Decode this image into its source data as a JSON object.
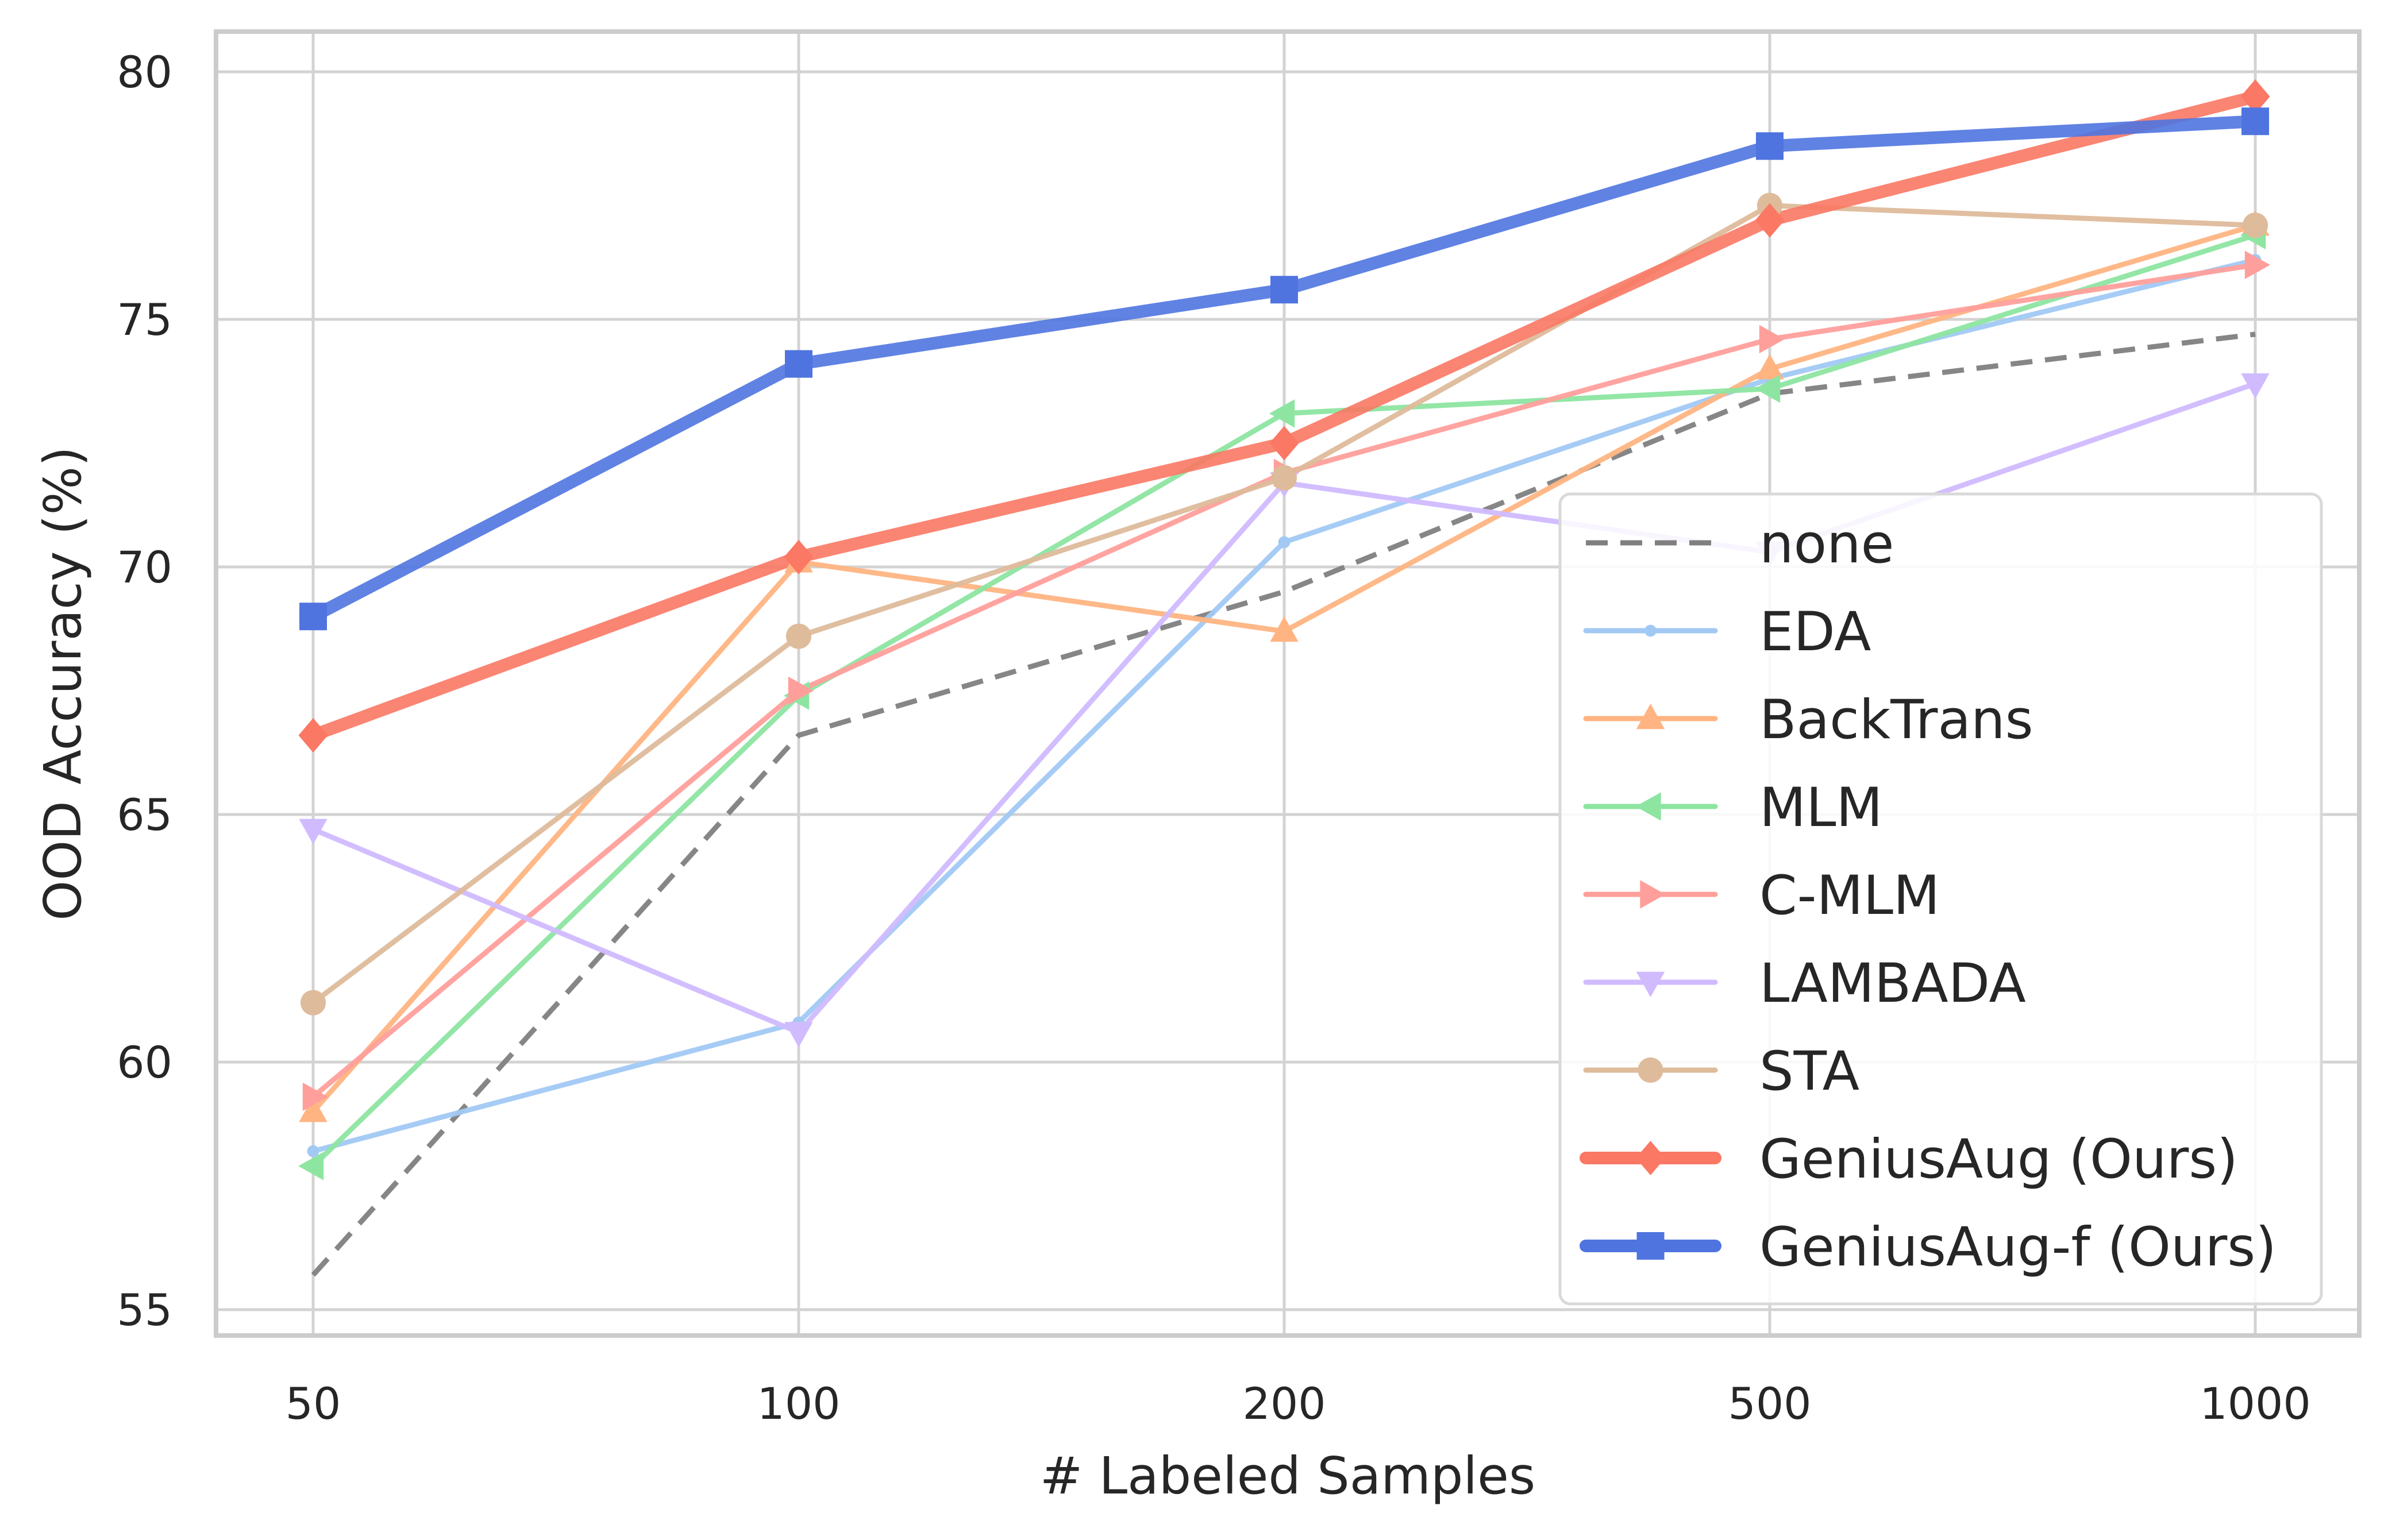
{
  "chart_data": {
    "type": "line",
    "title": "",
    "xlabel": "# Labeled Samples",
    "ylabel": "OOD Accuracy (%)",
    "categories": [
      "50",
      "100",
      "200",
      "500",
      "1000"
    ],
    "yticks": [
      "55",
      "60",
      "65",
      "70",
      "75",
      "80"
    ],
    "ylim": [
      54.5,
      80.8
    ],
    "grid": true,
    "legend_position": "lower-right",
    "series": [
      {
        "name": "none",
        "values": [
          55.7,
          66.6,
          69.5,
          73.5,
          74.7
        ],
        "color": "#7f7f7f",
        "marker": "none",
        "dash": true,
        "width": "thin"
      },
      {
        "name": "EDA",
        "values": [
          58.2,
          60.8,
          70.5,
          73.8,
          76.2
        ],
        "color": "#a1c9f4",
        "marker": "dot",
        "width": "thin"
      },
      {
        "name": "BackTrans",
        "values": [
          59.0,
          70.1,
          68.7,
          74.0,
          76.9
        ],
        "color": "#ffb482",
        "marker": "triangle-up",
        "width": "thin"
      },
      {
        "name": "MLM",
        "values": [
          57.9,
          67.4,
          73.1,
          73.6,
          76.7
        ],
        "color": "#8de5a1",
        "marker": "triangle-left",
        "width": "thin"
      },
      {
        "name": "C-MLM",
        "values": [
          59.3,
          67.5,
          71.9,
          74.6,
          76.1
        ],
        "color": "#ff9f9b",
        "marker": "triangle-right",
        "width": "thin"
      },
      {
        "name": "LAMBADA",
        "values": [
          64.7,
          60.6,
          71.7,
          70.3,
          73.7
        ],
        "color": "#d0bbff",
        "marker": "triangle-down",
        "width": "thin"
      },
      {
        "name": "STA",
        "values": [
          61.2,
          68.6,
          71.8,
          77.3,
          76.9
        ],
        "color": "#debb9b",
        "marker": "circle",
        "width": "thin"
      },
      {
        "name": "GeniusAug (Ours)",
        "values": [
          66.6,
          70.2,
          72.5,
          77.0,
          79.5
        ],
        "color": "#fa7864",
        "marker": "diamond",
        "width": "thick"
      },
      {
        "name": "GeniusAug-f (Ours)",
        "values": [
          69.0,
          74.1,
          75.6,
          78.5,
          79.0
        ],
        "color": "#4f74e0",
        "marker": "square",
        "width": "thick"
      }
    ]
  }
}
